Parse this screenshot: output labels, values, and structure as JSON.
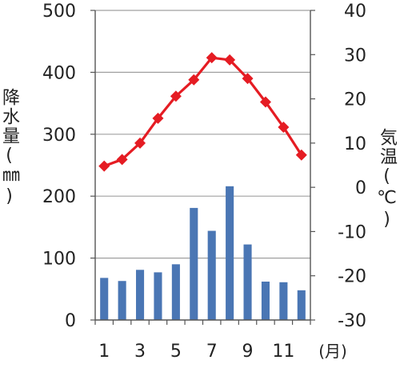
{
  "chart_data": {
    "type": "bar+line",
    "categories": [
      "1",
      "2",
      "3",
      "4",
      "5",
      "6",
      "7",
      "8",
      "9",
      "10",
      "11",
      "12"
    ],
    "x_tick_labels": [
      "1",
      "3",
      "5",
      "7",
      "9",
      "11"
    ],
    "x_unit_label": "(月)",
    "series": [
      {
        "kind": "bar",
        "axis": "left",
        "color": "#4a76b4",
        "values": [
          68,
          63,
          81,
          77,
          90,
          181,
          144,
          216,
          122,
          62,
          61,
          48
        ]
      },
      {
        "kind": "line",
        "axis": "right",
        "color": "#e51c23",
        "marker": "diamond",
        "values": [
          4.8,
          6.3,
          10.0,
          15.6,
          20.6,
          24.3,
          29.3,
          28.8,
          24.6,
          19.3,
          13.6,
          7.3
        ]
      }
    ],
    "y_left": {
      "label": "降水量(㎜)",
      "ylim": [
        0,
        500
      ],
      "ticks": [
        0,
        100,
        200,
        300,
        400,
        500
      ]
    },
    "y_right": {
      "label": "気温(℃)",
      "ylim": [
        -30,
        40
      ],
      "ticks": [
        -30,
        -20,
        -10,
        0,
        10,
        20,
        30,
        40
      ]
    },
    "grid": true
  }
}
